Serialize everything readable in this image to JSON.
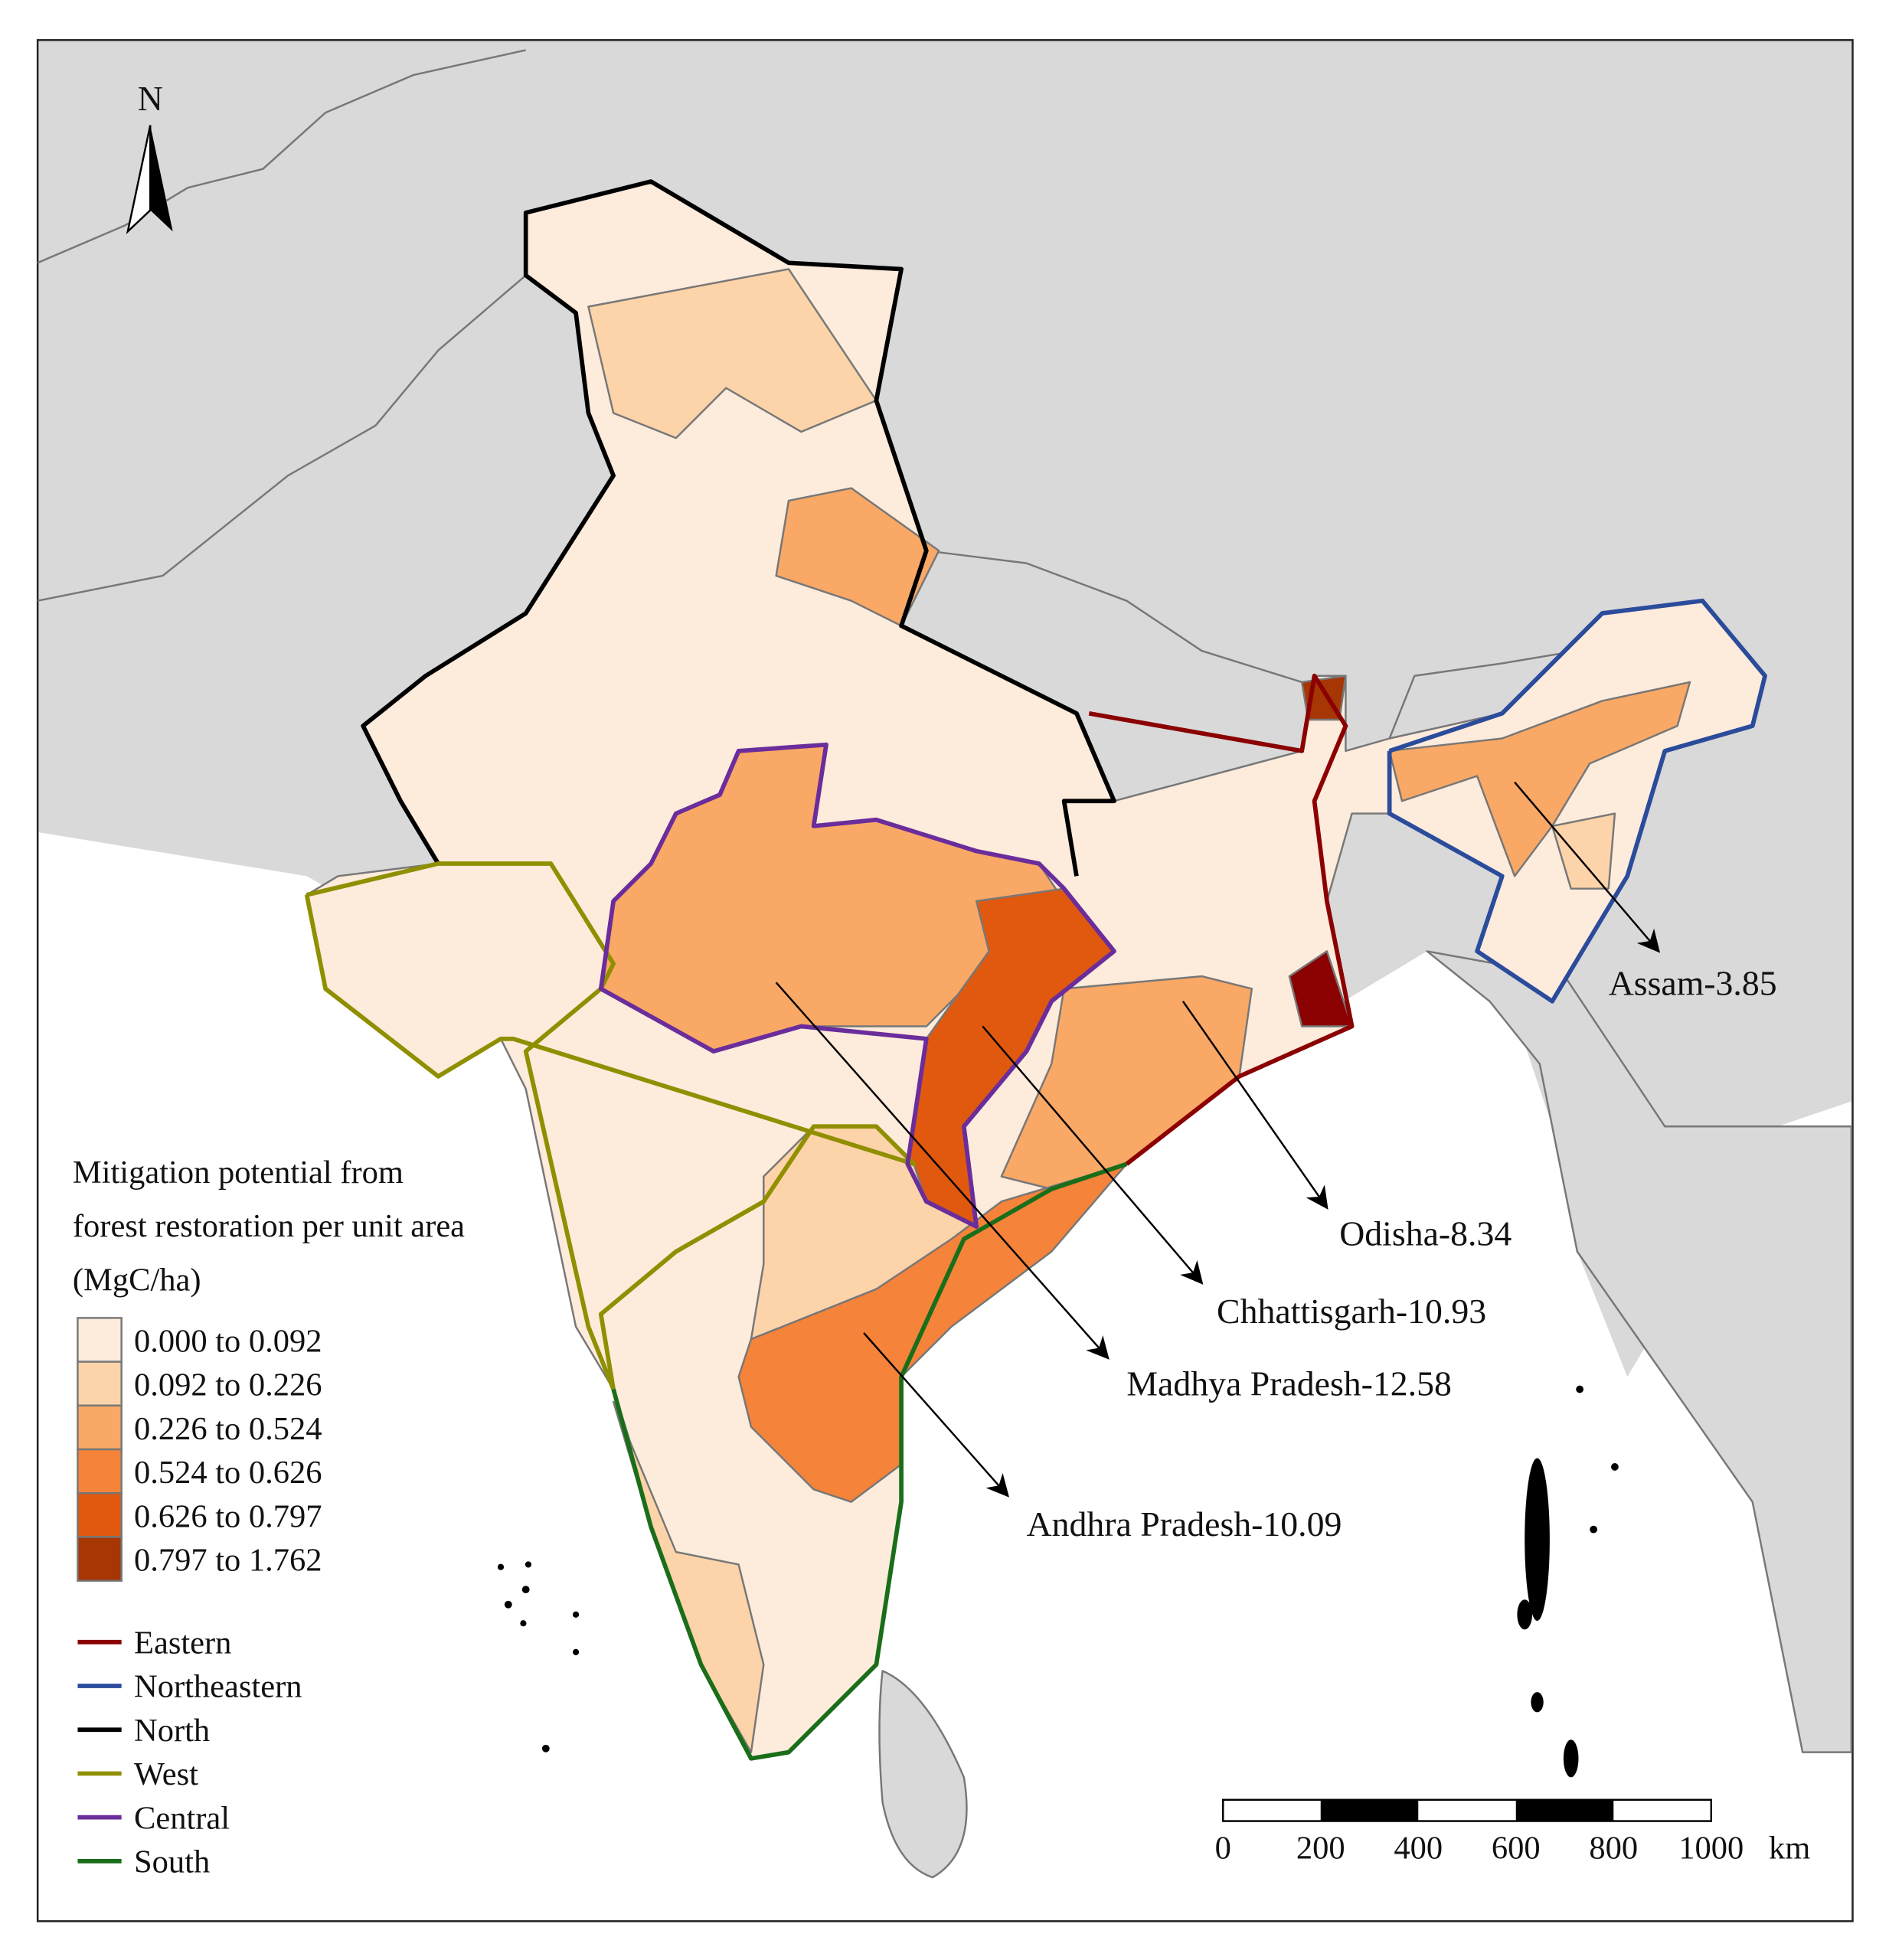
{
  "map": {
    "north_label": "N",
    "legend": {
      "title_lines": [
        "Mitigation potential from",
        "forest restoration per unit area",
        "(MgC/ha)"
      ],
      "classes": [
        {
          "label": "0.000 to 0.092",
          "color": "#fdebdc"
        },
        {
          "label": "0.092 to 0.226",
          "color": "#fdd3a9"
        },
        {
          "label": "0.226 to 0.524",
          "color": "#f9a866"
        },
        {
          "label": "0.524 to 0.626",
          "color": "#f5833a"
        },
        {
          "label": "0.626 to 0.797",
          "color": "#e0590f"
        },
        {
          "label": "0.797 to 1.762",
          "color": "#a63603"
        }
      ],
      "regions": [
        {
          "label": "Eastern",
          "color": "#8b0000"
        },
        {
          "label": "Northeastern",
          "color": "#2b4b9b"
        },
        {
          "label": "North",
          "color": "#000000"
        },
        {
          "label": "West",
          "color": "#8f8f00"
        },
        {
          "label": "Central",
          "color": "#6a2d9b"
        },
        {
          "label": "South",
          "color": "#1a6e1a"
        }
      ]
    },
    "annotations": [
      {
        "label": "Assam-3.85"
      },
      {
        "label": "Odisha-8.34"
      },
      {
        "label": "Chhattisgarh-10.93"
      },
      {
        "label": "Madhya Pradesh-12.58"
      },
      {
        "label": "Andhra Pradesh-10.09"
      }
    ],
    "scale_bar": {
      "ticks": [
        "0",
        "200",
        "400",
        "600",
        "800",
        "1000"
      ],
      "unit": "km"
    }
  }
}
